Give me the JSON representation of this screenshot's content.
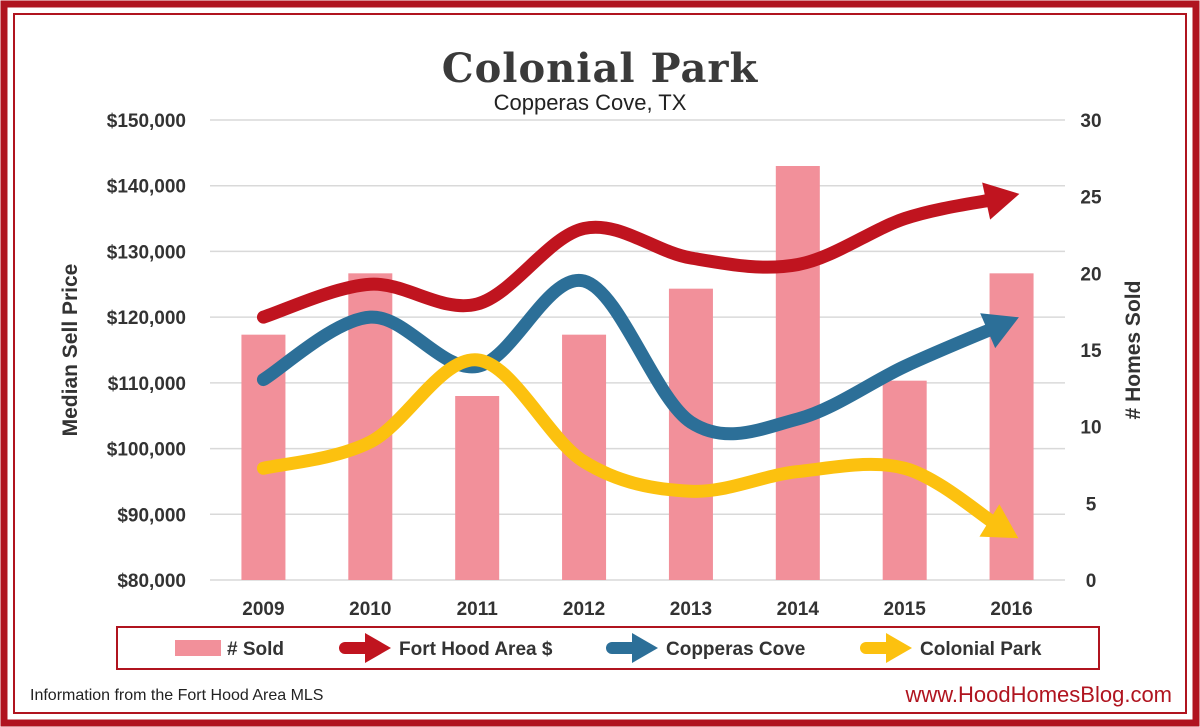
{
  "chart_data": {
    "type": "bar",
    "title": "Colonial Park",
    "subtitle": "Copperas Cove, TX",
    "categories": [
      "2009",
      "2010",
      "2011",
      "2012",
      "2013",
      "2014",
      "2015",
      "2016"
    ],
    "ylabel_left": "Median Sell Price",
    "ylabel_right": "# Homes Sold",
    "ylim_left": [
      80000,
      150000
    ],
    "ylim_right": [
      0,
      30
    ],
    "yticks_left": [
      "$80,000",
      "$90,000",
      "$100,000",
      "$110,000",
      "$120,000",
      "$130,000",
      "$140,000",
      "$150,000"
    ],
    "yticks_right": [
      "0",
      "5",
      "10",
      "15",
      "20",
      "25",
      "30"
    ],
    "grid": true,
    "legend_position": "bottom",
    "series": [
      {
        "name": "# Sold",
        "type": "bar",
        "axis": "right",
        "color": "#f2909a",
        "values": [
          16,
          20,
          12,
          16,
          19,
          27,
          13,
          20
        ]
      },
      {
        "name": "Fort Hood Area $",
        "type": "line",
        "axis": "left",
        "color": "#c0141f",
        "values": [
          120000,
          125000,
          122000,
          133500,
          129000,
          128000,
          135000,
          138500
        ]
      },
      {
        "name": "Copperas Cove",
        "type": "line",
        "axis": "left",
        "color": "#2c6f98",
        "values": [
          110500,
          120000,
          112500,
          125500,
          104000,
          104500,
          112500,
          119500
        ]
      },
      {
        "name": "Colonial Park",
        "type": "line",
        "axis": "left",
        "color": "#fcc10f",
        "values": [
          97000,
          101000,
          113500,
          98000,
          93500,
          96500,
          97000,
          87000
        ]
      }
    ]
  },
  "footer": {
    "source": "Information from the Fort Hood Area MLS",
    "website": "www.HoodHomesBlog.com"
  },
  "colors": {
    "frame": "#b0141f",
    "grid": "#d9d9d9"
  }
}
